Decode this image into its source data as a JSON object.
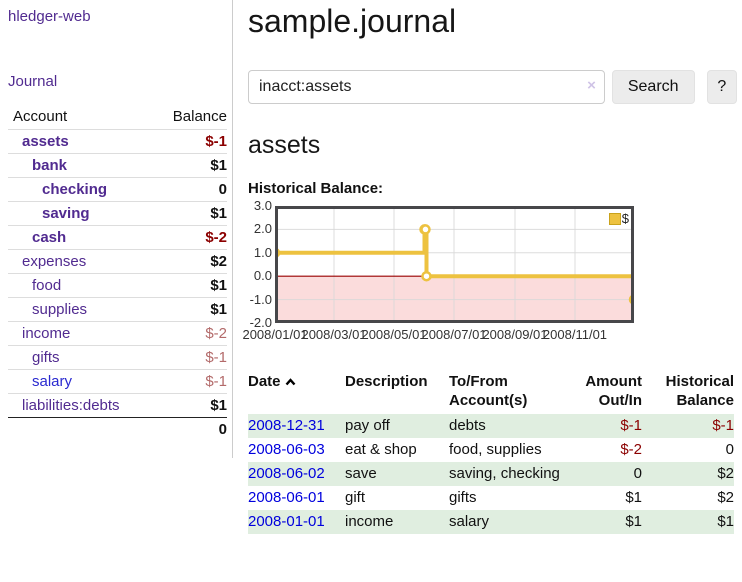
{
  "colors": {
    "purple": "#512b90",
    "link_blue": "#2a2ad0",
    "date_blue": "#0000dd",
    "negative_strong": "#8b0000",
    "negative_soft": "#b36a6a",
    "stripe_green": "#e0eee0",
    "gold": "#edc240",
    "pink_fill": "#fbdcdc",
    "zero_line": "#990000",
    "chart_border": "#47474a",
    "grid_line": "#d9d9d9"
  },
  "icons": {
    "search_clear": "×",
    "date_sort": "chevron-up"
  },
  "sidebar": {
    "app_title": "hledger-web",
    "journal_label": "Journal",
    "table": {
      "headers": {
        "account": "Account",
        "balance": "Balance"
      },
      "rows": [
        {
          "name": "assets",
          "balance": "$-1",
          "indent": 0,
          "bold": true,
          "balance_tone": "negative-strong"
        },
        {
          "name": "bank",
          "balance": "$1",
          "indent": 1,
          "bold": true,
          "balance_tone": "normal"
        },
        {
          "name": "checking",
          "balance": "0",
          "indent": 2,
          "bold": true,
          "balance_tone": "normal"
        },
        {
          "name": "saving",
          "balance": "$1",
          "indent": 2,
          "bold": true,
          "balance_tone": "normal"
        },
        {
          "name": "cash",
          "balance": "$-2",
          "indent": 1,
          "bold": true,
          "balance_tone": "negative-strong"
        },
        {
          "name": "expenses",
          "balance": "$2",
          "indent": 0,
          "bold": false,
          "balance_tone": "normal"
        },
        {
          "name": "food",
          "balance": "$1",
          "indent": 1,
          "bold": false,
          "balance_tone": "normal"
        },
        {
          "name": "supplies",
          "balance": "$1",
          "indent": 1,
          "bold": false,
          "balance_tone": "normal"
        },
        {
          "name": "income",
          "balance": "$-2",
          "indent": 0,
          "bold": false,
          "balance_tone": "negative-soft"
        },
        {
          "name": "gifts",
          "balance": "$-1",
          "indent": 1,
          "bold": false,
          "balance_tone": "negative-soft"
        },
        {
          "name": "salary",
          "balance": "$-1",
          "indent": 1,
          "bold": false,
          "balance_tone": "negative-soft",
          "link_tone": "unvisited"
        },
        {
          "name": "liabilities:debts",
          "balance": "$1",
          "indent": 0,
          "bold": false,
          "balance_tone": "normal"
        }
      ],
      "total": "0"
    }
  },
  "main": {
    "title": "sample.journal",
    "search": {
      "value": "inacct:assets",
      "clear_icon": "×",
      "button_label": "Search",
      "help_label": "?"
    },
    "account_heading": "assets",
    "chart_label": "Historical Balance:",
    "register": {
      "headers": {
        "date": "Date",
        "description": "Description",
        "accounts": "To/From Account(s)",
        "amount": "Amount Out/In",
        "balance": "Historical Balance"
      },
      "rows": [
        {
          "date": "2008-12-31",
          "description": "pay off",
          "accounts": "debts",
          "amount": "$-1",
          "balance": "$-1",
          "amount_negative": true,
          "balance_negative": true
        },
        {
          "date": "2008-06-03",
          "description": "eat & shop",
          "accounts": "food, supplies",
          "amount": "$-2",
          "balance": "0",
          "amount_negative": true,
          "balance_negative": false
        },
        {
          "date": "2008-06-02",
          "description": "save",
          "accounts": "saving, checking",
          "amount": "0",
          "balance": "$2",
          "amount_negative": false,
          "balance_negative": false
        },
        {
          "date": "2008-06-01",
          "description": "gift",
          "accounts": "gifts",
          "amount": "$1",
          "balance": "$2",
          "amount_negative": false,
          "balance_negative": false
        },
        {
          "date": "2008-01-01",
          "description": "income",
          "accounts": "salary",
          "amount": "$1",
          "balance": "$1",
          "amount_negative": false,
          "balance_negative": false
        }
      ]
    }
  },
  "chart_data": {
    "type": "line",
    "style": "steps",
    "title": "Historical Balance:",
    "series": [
      {
        "name": "$",
        "color": "#edc240",
        "points": [
          [
            "2008-01-01",
            1
          ],
          [
            "2008-06-01",
            2
          ],
          [
            "2008-06-02",
            2
          ],
          [
            "2008-06-03",
            0
          ],
          [
            "2008-12-31",
            -1
          ]
        ]
      }
    ],
    "xlim": [
      "2008-01-01",
      "2008-12-31"
    ],
    "ylim": [
      -2,
      3
    ],
    "x_ticks": [
      "2008/01/01",
      "2008/03/01",
      "2008/05/01",
      "2008/07/01",
      "2008/09/01",
      "2008/11/01"
    ],
    "y_ticks": [
      3.0,
      2.0,
      1.0,
      0.0,
      -1.0,
      -2.0
    ],
    "grid": true,
    "legend_position": "top-right",
    "negative_region": true
  }
}
